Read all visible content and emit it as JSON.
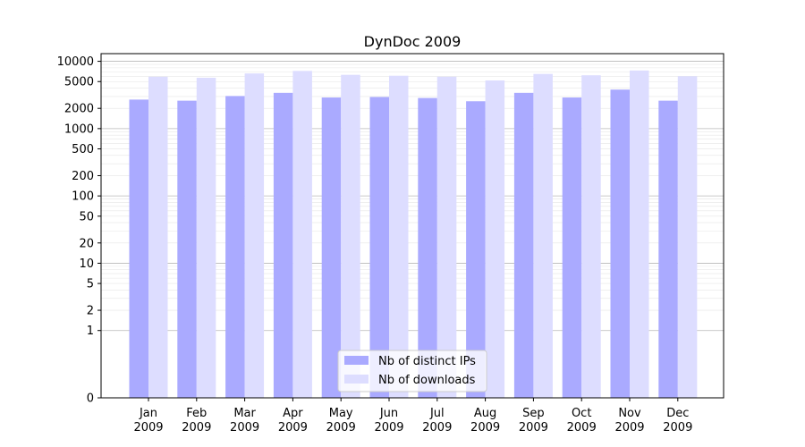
{
  "chart_data": {
    "type": "bar",
    "title": "DynDoc 2009",
    "xlabel": "",
    "ylabel": "",
    "y_scale": "symlog",
    "ylim": [
      0,
      13000
    ],
    "y_ticks": [
      0,
      1,
      2,
      5,
      10,
      20,
      50,
      100,
      200,
      500,
      1000,
      2000,
      5000,
      10000
    ],
    "y_tick_labels": [
      "0",
      "1",
      "2",
      "5",
      "10",
      "20",
      "50",
      "100",
      "200",
      "500",
      "1000",
      "2000",
      "5000",
      "10000"
    ],
    "grid": true,
    "legend_position": "lower-center",
    "categories": [
      {
        "month": "Jan",
        "year": "2009"
      },
      {
        "month": "Feb",
        "year": "2009"
      },
      {
        "month": "Mar",
        "year": "2009"
      },
      {
        "month": "Apr",
        "year": "2009"
      },
      {
        "month": "May",
        "year": "2009"
      },
      {
        "month": "Jun",
        "year": "2009"
      },
      {
        "month": "Jul",
        "year": "2009"
      },
      {
        "month": "Aug",
        "year": "2009"
      },
      {
        "month": "Sep",
        "year": "2009"
      },
      {
        "month": "Oct",
        "year": "2009"
      },
      {
        "month": "Nov",
        "year": "2009"
      },
      {
        "month": "Dec",
        "year": "2009"
      }
    ],
    "series": [
      {
        "name": "Nb of distinct IPs",
        "color": "#aaaaff",
        "values": [
          2700,
          2600,
          3050,
          3400,
          2900,
          2950,
          2850,
          2550,
          3400,
          2900,
          3800,
          2600
        ]
      },
      {
        "name": "Nb of downloads",
        "color": "#ddddff",
        "values": [
          5900,
          5700,
          6600,
          7200,
          6300,
          6100,
          5900,
          5200,
          6500,
          6200,
          7300,
          6000
        ]
      }
    ]
  }
}
